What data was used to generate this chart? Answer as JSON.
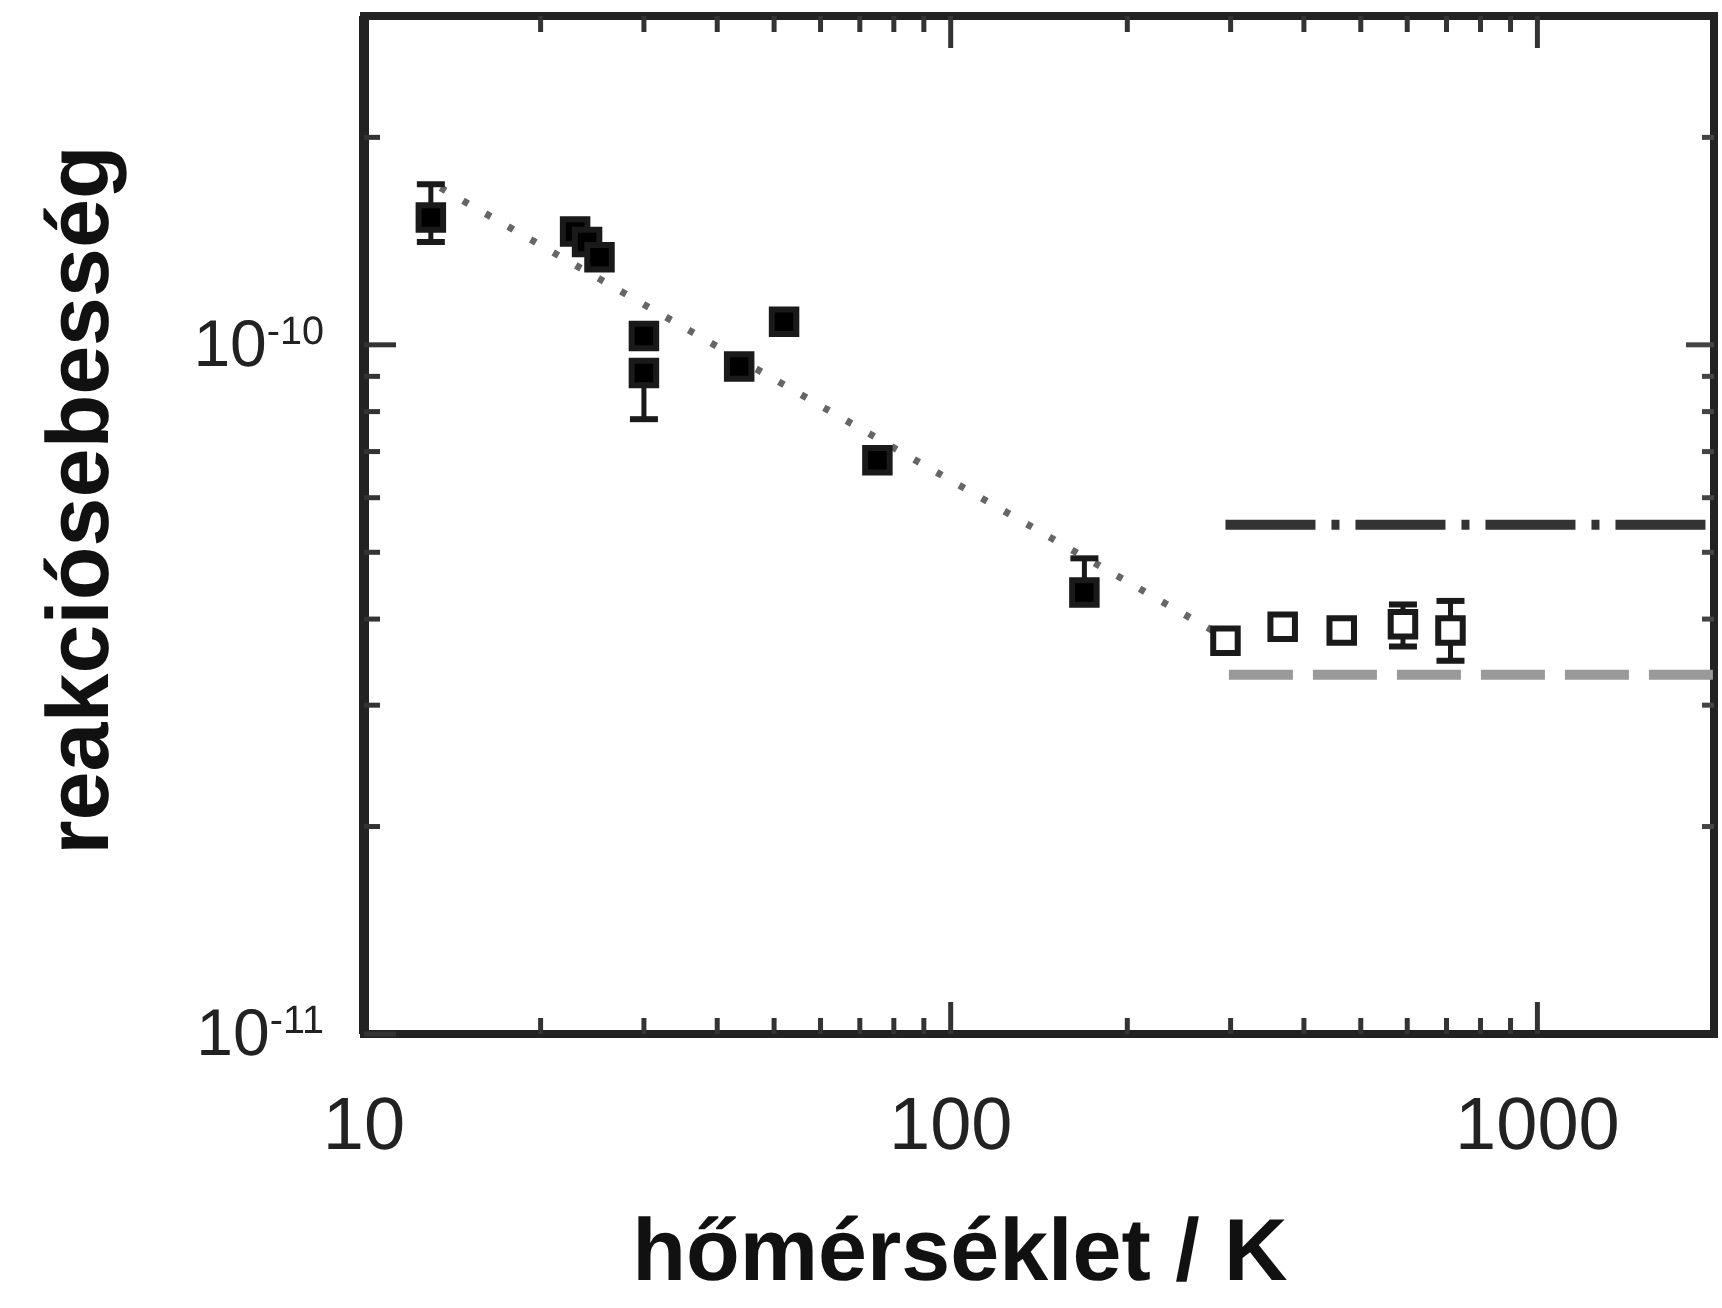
{
  "chart_data": {
    "type": "scatter",
    "xlabel": "hőmérséklet / K",
    "ylabel": "reakciósebesség",
    "log": "xy",
    "xlim": [
      10,
      2000
    ],
    "ylim": [
      1e-11,
      3e-10
    ],
    "xticks": [
      10,
      {
        "value": 20,
        "label": null
      },
      {
        "value": 30,
        "label": null
      },
      {
        "value": 40,
        "label": null
      },
      {
        "value": 50,
        "label": null
      },
      {
        "value": 60,
        "label": null
      },
      {
        "value": 70,
        "label": null
      },
      {
        "value": 80,
        "label": null
      },
      {
        "value": 90,
        "label": null
      },
      100,
      {
        "value": 200,
        "label": null
      },
      {
        "value": 300,
        "label": null
      },
      {
        "value": 400,
        "label": null
      },
      {
        "value": 500,
        "label": null
      },
      {
        "value": 600,
        "label": null
      },
      {
        "value": 700,
        "label": null
      },
      {
        "value": 800,
        "label": null
      },
      {
        "value": 900,
        "label": null
      },
      1000
    ],
    "yticks": [
      {
        "value": 1e-11,
        "label": "10$^{-11}$"
      },
      {
        "value": 2e-11,
        "label": null
      },
      {
        "value": 3e-11,
        "label": null
      },
      {
        "value": 4e-11,
        "label": null
      },
      {
        "value": 5e-11,
        "label": null
      },
      {
        "value": 6e-11,
        "label": null
      },
      {
        "value": 7e-11,
        "label": null
      },
      {
        "value": 8e-11,
        "label": null
      },
      {
        "value": 9e-11,
        "label": null
      },
      {
        "value": 1e-10,
        "label": "10$^{-10}$"
      },
      {
        "value": 2e-10,
        "label": null
      }
    ],
    "marker": "square",
    "series": [
      {
        "color": "#000000",
        "x": [
          13,
          22.9,
          24,
          25.2,
          30,
          30,
          43.6,
          52,
          75,
          169
        ],
        "values": [
          1.53e-10,
          1.46e-10,
          1.41e-10,
          1.34e-10,
          1.03e-10,
          9.1e-11,
          9.3e-11,
          1.08e-10,
          6.8e-11,
          4.37e-11
        ],
        "errors": [
          [
            1.41e-10,
            1.71e-10
          ],
          null,
          null,
          null,
          null,
          [
            7.8e-11,
            9.1e-11
          ],
          null,
          null,
          null,
          [
            4.37e-11,
            4.9e-11
          ]
        ]
      },
      {
        "color": "#ffffff",
        "x": [
          294,
          368,
          464,
          590,
          711
        ],
        "values": [
          3.72e-11,
          3.9e-11,
          3.85e-11,
          3.93e-11,
          3.85e-11
        ],
        "errors": [
          null,
          null,
          null,
          [
            3.65e-11,
            4.2e-11
          ],
          [
            3.48e-11,
            4.25e-11
          ]
        ]
      },
      {
        "type": "line",
        "color": "#666666",
        "line_style": "dotted",
        "marker": "none",
        "x": [
          13.5,
          290
        ],
        "values": [
          1.69e-10,
          3.78e-11
        ]
      },
      {
        "type": "line",
        "color": "#333333",
        "line_style": "dashdot",
        "marker": "none",
        "x": [
          294,
          2000
        ],
        "values": [
          5.48e-11,
          5.48e-11
        ]
      },
      {
        "type": "line",
        "color": "#999999",
        "line_style": "dashed",
        "marker": "none",
        "x": [
          298,
          2000
        ],
        "values": [
          3.32e-11,
          3.32e-11
        ]
      }
    ]
  }
}
